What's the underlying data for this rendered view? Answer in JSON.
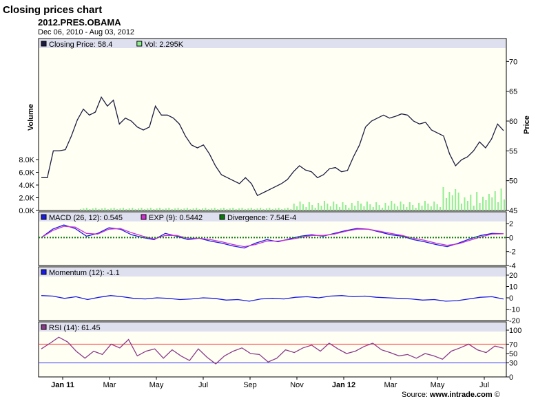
{
  "header": {
    "title": "Closing prices chart",
    "symbol": "2012.PRES.OBAMA",
    "date_range": "Dec 06, 2010 - Aug 03, 2012"
  },
  "footer": {
    "source_prefix": "Source: ",
    "source_site": "www.intrade.com",
    "copyright": " ©"
  },
  "colors": {
    "background": "#fffff4",
    "legend_band": "#dfe0ef",
    "price_line": "#1c1c40",
    "volume_bars": "#90ee90",
    "macd": "#1a1ae6",
    "exp": "#d030d0",
    "divergence": "#0a7a0a",
    "momentum": "#1a1ae6",
    "rsi": "#8b3a8b",
    "rsi_upper": "#ff4040",
    "rsi_lower": "#4040ff"
  },
  "chart_data": [
    {
      "panel": "price",
      "type": "line",
      "legend": [
        {
          "label": "Closing Price: 58.4",
          "color": "#1c1c40"
        },
        {
          "label": "Vol: 2.295K",
          "color": "#90ee90"
        }
      ],
      "ylabel_right": "Price",
      "ylabel_left": "Volume",
      "yticks_right": [
        "70",
        "65",
        "60",
        "55",
        "50",
        "45"
      ],
      "ylim_right": [
        45,
        72
      ],
      "yticks_left": [
        "8.0K",
        "6.0K",
        "4.0K",
        "2.0K",
        "0.0K"
      ],
      "ylim_left": [
        0,
        8000
      ],
      "x_labels": [
        "Jan 11",
        "Mar",
        "May",
        "Jul",
        "Sep",
        "Nov",
        "Jan 12",
        "Mar",
        "May",
        "Jul"
      ],
      "series": [
        {
          "values": [
            50.5,
            50.5,
            55.0,
            55.0,
            55.2,
            57.5,
            60.2,
            62.0,
            61.0,
            61.5,
            64.0,
            62.5,
            63.5,
            59.5,
            60.5,
            60.0,
            59.0,
            58.5,
            59.0,
            62.5,
            61.0,
            61.0,
            60.5,
            59.5,
            57.5,
            56.0,
            55.5,
            56.0,
            54.5,
            52.5,
            51.0,
            50.5,
            50.0,
            49.5,
            50.5,
            49.5,
            47.5,
            48.0,
            48.5,
            49.0,
            49.5,
            50.2,
            51.5,
            52.5,
            51.8,
            51.5,
            50.5,
            51.0,
            52.0,
            52.2,
            51.5,
            51.7,
            54.0,
            56.0,
            59.0,
            60.0,
            60.5,
            61.0,
            60.5,
            60.8,
            61.2,
            61.0,
            60.0,
            59.5,
            59.8,
            58.5,
            58.0,
            57.5,
            54.5,
            52.5,
            53.5,
            54.0,
            55.0,
            56.5,
            55.5,
            57.0,
            59.5,
            58.4
          ]
        }
      ],
      "volume_note": "Vol: 2.295K"
    },
    {
      "panel": "macd",
      "type": "line",
      "legend": [
        {
          "label": "MACD (26, 12): 0.545",
          "color": "#1a1ae6"
        },
        {
          "label": "EXP (9): 0.5442",
          "color": "#d030d0"
        },
        {
          "label": "Divergence: 7.54E-4",
          "color": "#0a7a0a"
        }
      ],
      "yticks": [
        "2",
        "0",
        "-2",
        "-4"
      ],
      "ylim": [
        -4,
        2.5
      ],
      "series": [
        {
          "name": "MACD (26, 12)",
          "values": [
            0.0,
            1.2,
            1.8,
            1.3,
            0.2,
            0.6,
            1.4,
            1.2,
            0.4,
            0.0,
            -0.3,
            0.6,
            0.2,
            -0.3,
            -0.1,
            -0.5,
            -0.8,
            -1.2,
            -1.5,
            -0.8,
            -0.3,
            -0.6,
            -0.2,
            0.2,
            0.4,
            0.2,
            0.6,
            1.0,
            1.3,
            1.2,
            0.8,
            0.4,
            0.2,
            -0.3,
            -0.6,
            -1.0,
            -1.3,
            -0.8,
            -0.2,
            0.3,
            0.6,
            0.545
          ]
        },
        {
          "name": "EXP (9)",
          "values": [
            0.0,
            1.0,
            1.6,
            1.5,
            0.6,
            0.5,
            1.2,
            1.3,
            0.7,
            0.2,
            -0.2,
            0.3,
            0.3,
            -0.1,
            -0.1,
            -0.3,
            -0.6,
            -1.0,
            -1.3,
            -1.0,
            -0.5,
            -0.5,
            -0.3,
            0.0,
            0.3,
            0.3,
            0.5,
            0.9,
            1.2,
            1.2,
            0.9,
            0.6,
            0.3,
            -0.1,
            -0.4,
            -0.8,
            -1.1,
            -0.9,
            -0.4,
            0.1,
            0.5,
            0.5442
          ]
        }
      ]
    },
    {
      "panel": "momentum",
      "type": "line",
      "legend": [
        {
          "label": "Momentum (12): -1.1",
          "color": "#1a1ae6"
        }
      ],
      "yticks": [
        "20",
        "10",
        "0",
        "-10",
        "-20"
      ],
      "ylim": [
        -20,
        20
      ],
      "series": [
        {
          "name": "Momentum (12)",
          "values": [
            2.0,
            1.5,
            -0.5,
            1.0,
            -1.5,
            0.5,
            2.0,
            1.0,
            -0.5,
            -1.0,
            0.0,
            -0.5,
            -1.5,
            -1.0,
            0.0,
            -0.5,
            -2.0,
            -1.5,
            -3.0,
            -1.0,
            -0.5,
            -1.0,
            0.5,
            1.0,
            0.0,
            1.5,
            2.0,
            1.0,
            1.5,
            0.5,
            0.0,
            -0.5,
            -1.0,
            -2.0,
            -1.5,
            -3.0,
            -2.5,
            -1.0,
            0.5,
            1.0,
            -1.1
          ]
        }
      ]
    },
    {
      "panel": "rsi",
      "type": "line",
      "legend": [
        {
          "label": "RSI (14): 61.45",
          "color": "#8b3a8b"
        }
      ],
      "yticks": [
        "100",
        "70",
        "50",
        "30",
        "0"
      ],
      "ylim": [
        0,
        100
      ],
      "reference_lines": [
        {
          "value": 70,
          "color": "#ff4040"
        },
        {
          "value": 30,
          "color": "#4040ff"
        }
      ],
      "series": [
        {
          "name": "RSI (14)",
          "values": [
            60,
            72,
            85,
            75,
            55,
            40,
            55,
            48,
            70,
            62,
            80,
            45,
            55,
            60,
            40,
            58,
            45,
            35,
            60,
            42,
            28,
            45,
            55,
            62,
            50,
            48,
            32,
            40,
            58,
            52,
            62,
            68,
            55,
            72,
            60,
            50,
            55,
            65,
            72,
            58,
            52,
            45,
            48,
            40,
            50,
            45,
            38,
            55,
            62,
            70,
            58,
            52,
            66,
            61.45
          ]
        }
      ]
    }
  ]
}
